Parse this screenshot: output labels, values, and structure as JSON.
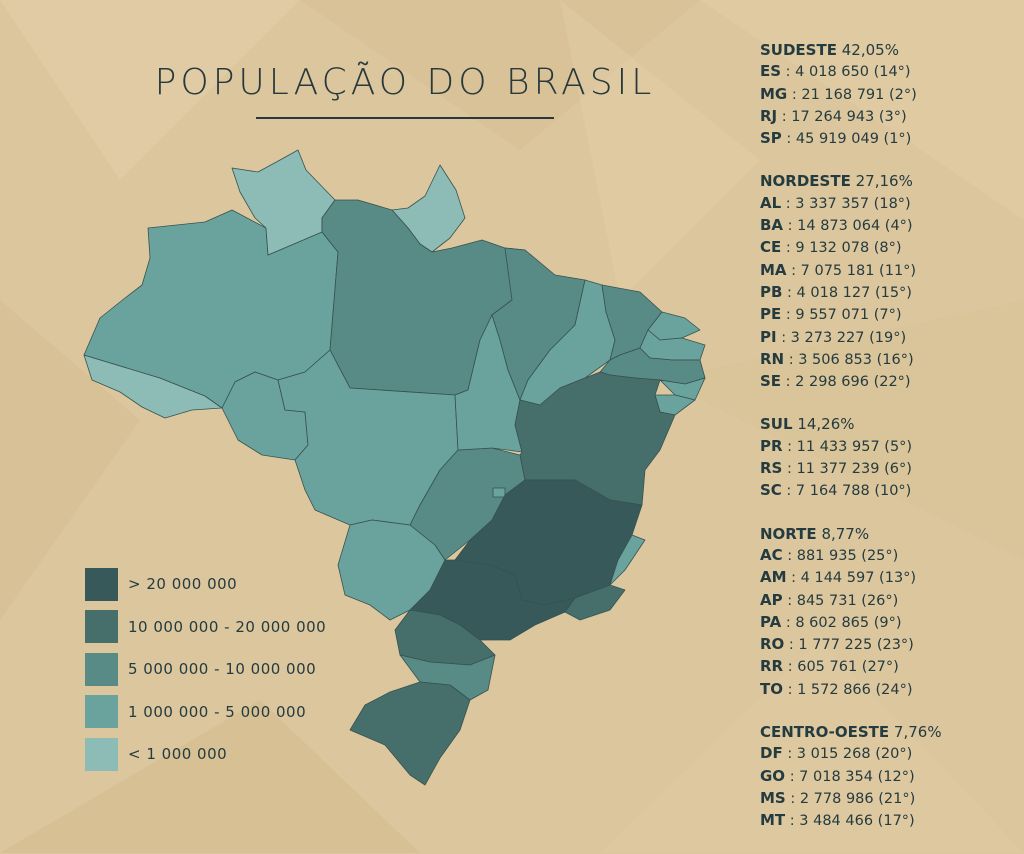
{
  "title": "POPULAÇÃO DO BRASIL",
  "colors": {
    "background": "#dcc69d",
    "tier_gt_20m": "#37595a",
    "tier_10m_20m": "#466f6c",
    "tier_5m_10m": "#588a86",
    "tier_1m_5m": "#6aa39d",
    "tier_lt_1m": "#8dbbb5",
    "text": "#243b40"
  },
  "legend": [
    {
      "label": "> 20 000 000",
      "color": "#37595a"
    },
    {
      "label": "10 000 000 - 20 000 000",
      "color": "#466f6c"
    },
    {
      "label": "5 000 000 - 10 000 000",
      "color": "#588a86"
    },
    {
      "label": "1 000 000 - 5 000 000",
      "color": "#6aa39d"
    },
    {
      "label": "< 1 000 000",
      "color": "#8dbbb5"
    }
  ],
  "regions": [
    {
      "name": "SUDESTE",
      "pct": "42,05%",
      "states": [
        {
          "abbr": "ES",
          "text": ": 4 018 650 (14°)"
        },
        {
          "abbr": "MG",
          "text": ": 21 168 791 (2°)"
        },
        {
          "abbr": "RJ",
          "text": ": 17 264 943 (3°)"
        },
        {
          "abbr": "SP",
          "text": ": 45 919 049 (1°)"
        }
      ]
    },
    {
      "name": "NORDESTE",
      "pct": "27,16%",
      "states": [
        {
          "abbr": "AL",
          "text": ": 3 337 357 (18°)"
        },
        {
          "abbr": "BA",
          "text": ": 14 873 064 (4°)"
        },
        {
          "abbr": "CE",
          "text": ": 9 132 078 (8°)"
        },
        {
          "abbr": "MA",
          "text": ": 7 075 181 (11°)"
        },
        {
          "abbr": "PB",
          "text": ": 4 018 127 (15°)"
        },
        {
          "abbr": "PE",
          "text": ": 9 557 071 (7°)"
        },
        {
          "abbr": "PI",
          "text": ": 3 273 227 (19°)"
        },
        {
          "abbr": "RN",
          "text": ": 3 506 853 (16°)"
        },
        {
          "abbr": "SE",
          "text": ": 2 298 696 (22°)"
        }
      ]
    },
    {
      "name": "SUL",
      "pct": "14,26%",
      "states": [
        {
          "abbr": "PR",
          "text": ": 11 433 957 (5°)"
        },
        {
          "abbr": "RS",
          "text": ": 11 377 239 (6°)"
        },
        {
          "abbr": "SC",
          "text": ": 7 164 788 (10°)"
        }
      ]
    },
    {
      "name": "NORTE",
      "pct": "8,77%",
      "states": [
        {
          "abbr": "AC",
          "text": ": 881 935 (25°)"
        },
        {
          "abbr": "AM",
          "text": ": 4 144 597 (13°)"
        },
        {
          "abbr": "AP",
          "text": ": 845 731 (26°)"
        },
        {
          "abbr": "PA",
          "text": ": 8 602 865 (9°)"
        },
        {
          "abbr": "RO",
          "text": ": 1 777 225 (23°)"
        },
        {
          "abbr": "RR",
          "text": ": 605 761 (27°)"
        },
        {
          "abbr": "TO",
          "text": ": 1 572 866 (24°)"
        }
      ]
    },
    {
      "name": "CENTRO-OESTE",
      "pct": "7,76%",
      "states": [
        {
          "abbr": "DF",
          "text": ": 3 015 268 (20°)"
        },
        {
          "abbr": "GO",
          "text": ": 7 018 354 (12°)"
        },
        {
          "abbr": "MS",
          "text": ": 2 778 986 (21°)"
        },
        {
          "abbr": "MT",
          "text": ": 3 484 466 (17°)"
        }
      ]
    }
  ],
  "map_states": [
    {
      "id": "RR",
      "tier": "tier_lt_1m"
    },
    {
      "id": "AP",
      "tier": "tier_lt_1m"
    },
    {
      "id": "AC",
      "tier": "tier_lt_1m"
    },
    {
      "id": "AM",
      "tier": "tier_1m_5m"
    },
    {
      "id": "RO",
      "tier": "tier_1m_5m"
    },
    {
      "id": "MT",
      "tier": "tier_1m_5m"
    },
    {
      "id": "MS",
      "tier": "tier_1m_5m"
    },
    {
      "id": "TO",
      "tier": "tier_1m_5m"
    },
    {
      "id": "PI",
      "tier": "tier_1m_5m"
    },
    {
      "id": "RN",
      "tier": "tier_1m_5m"
    },
    {
      "id": "PB",
      "tier": "tier_1m_5m"
    },
    {
      "id": "AL",
      "tier": "tier_1m_5m"
    },
    {
      "id": "SE",
      "tier": "tier_1m_5m"
    },
    {
      "id": "ES",
      "tier": "tier_1m_5m"
    },
    {
      "id": "DF",
      "tier": "tier_1m_5m"
    },
    {
      "id": "PA",
      "tier": "tier_5m_10m"
    },
    {
      "id": "MA",
      "tier": "tier_5m_10m"
    },
    {
      "id": "CE",
      "tier": "tier_5m_10m"
    },
    {
      "id": "PE",
      "tier": "tier_5m_10m"
    },
    {
      "id": "GO",
      "tier": "tier_5m_10m"
    },
    {
      "id": "SC",
      "tier": "tier_5m_10m"
    },
    {
      "id": "BA",
      "tier": "tier_10m_20m"
    },
    {
      "id": "RJ",
      "tier": "tier_10m_20m"
    },
    {
      "id": "PR",
      "tier": "tier_10m_20m"
    },
    {
      "id": "RS",
      "tier": "tier_10m_20m"
    },
    {
      "id": "SP",
      "tier": "tier_gt_20m"
    },
    {
      "id": "MG",
      "tier": "tier_gt_20m"
    }
  ]
}
